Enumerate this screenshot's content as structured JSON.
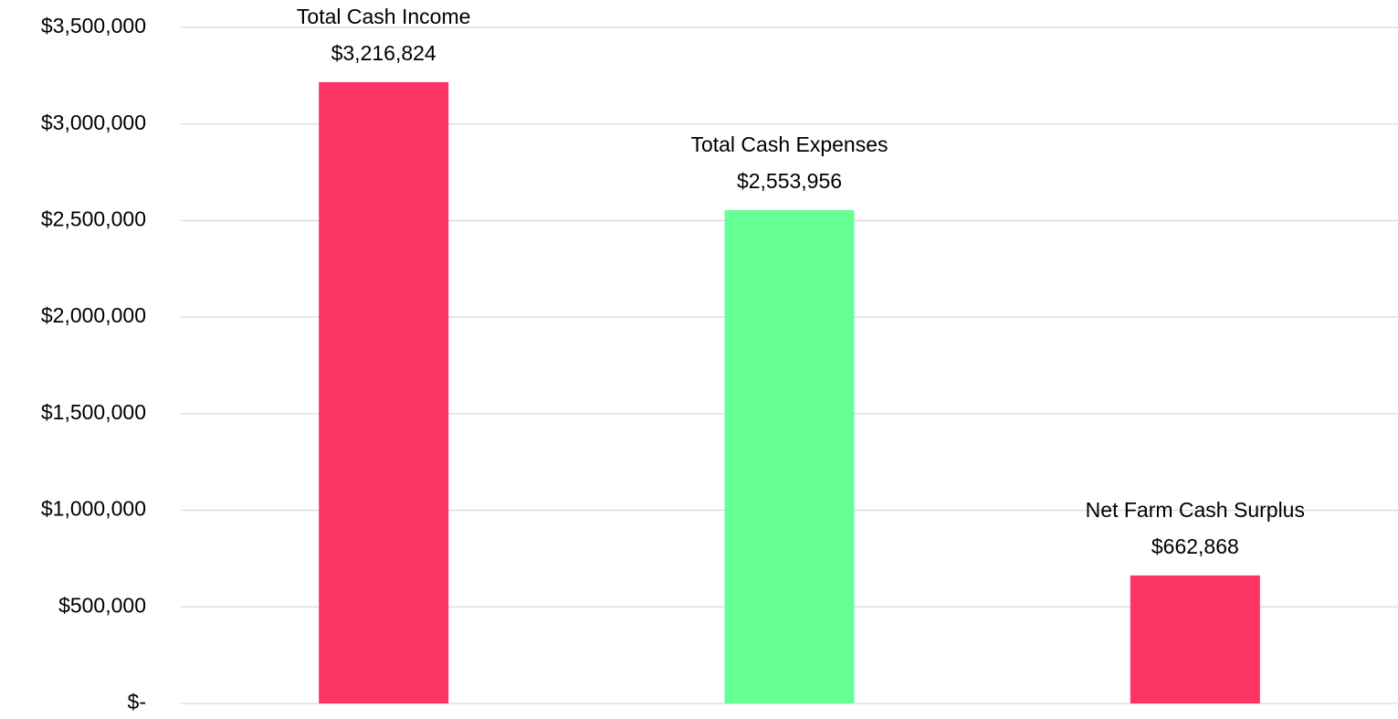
{
  "chart_data": {
    "type": "bar",
    "categories": [
      "Total Cash Income",
      "Total Cash Expenses",
      "Net Farm Cash Surplus"
    ],
    "values": [
      3216824,
      2553956,
      662868
    ],
    "value_labels": [
      "$3,216,824",
      "$2,553,956",
      "$662,868"
    ],
    "colors": [
      "#fb3564",
      "#66ff93",
      "#fb3564"
    ],
    "ylim": [
      0,
      3500000
    ],
    "yticks": [
      {
        "value": 0,
        "label": "$-"
      },
      {
        "value": 500000,
        "label": "$500,000"
      },
      {
        "value": 1000000,
        "label": "$1,000,000"
      },
      {
        "value": 1500000,
        "label": "$1,500,000"
      },
      {
        "value": 2000000,
        "label": "$2,000,000"
      },
      {
        "value": 2500000,
        "label": "$2,500,000"
      },
      {
        "value": 3000000,
        "label": "$3,000,000"
      },
      {
        "value": 3500000,
        "label": "$3,500,000"
      }
    ],
    "grid": true
  }
}
